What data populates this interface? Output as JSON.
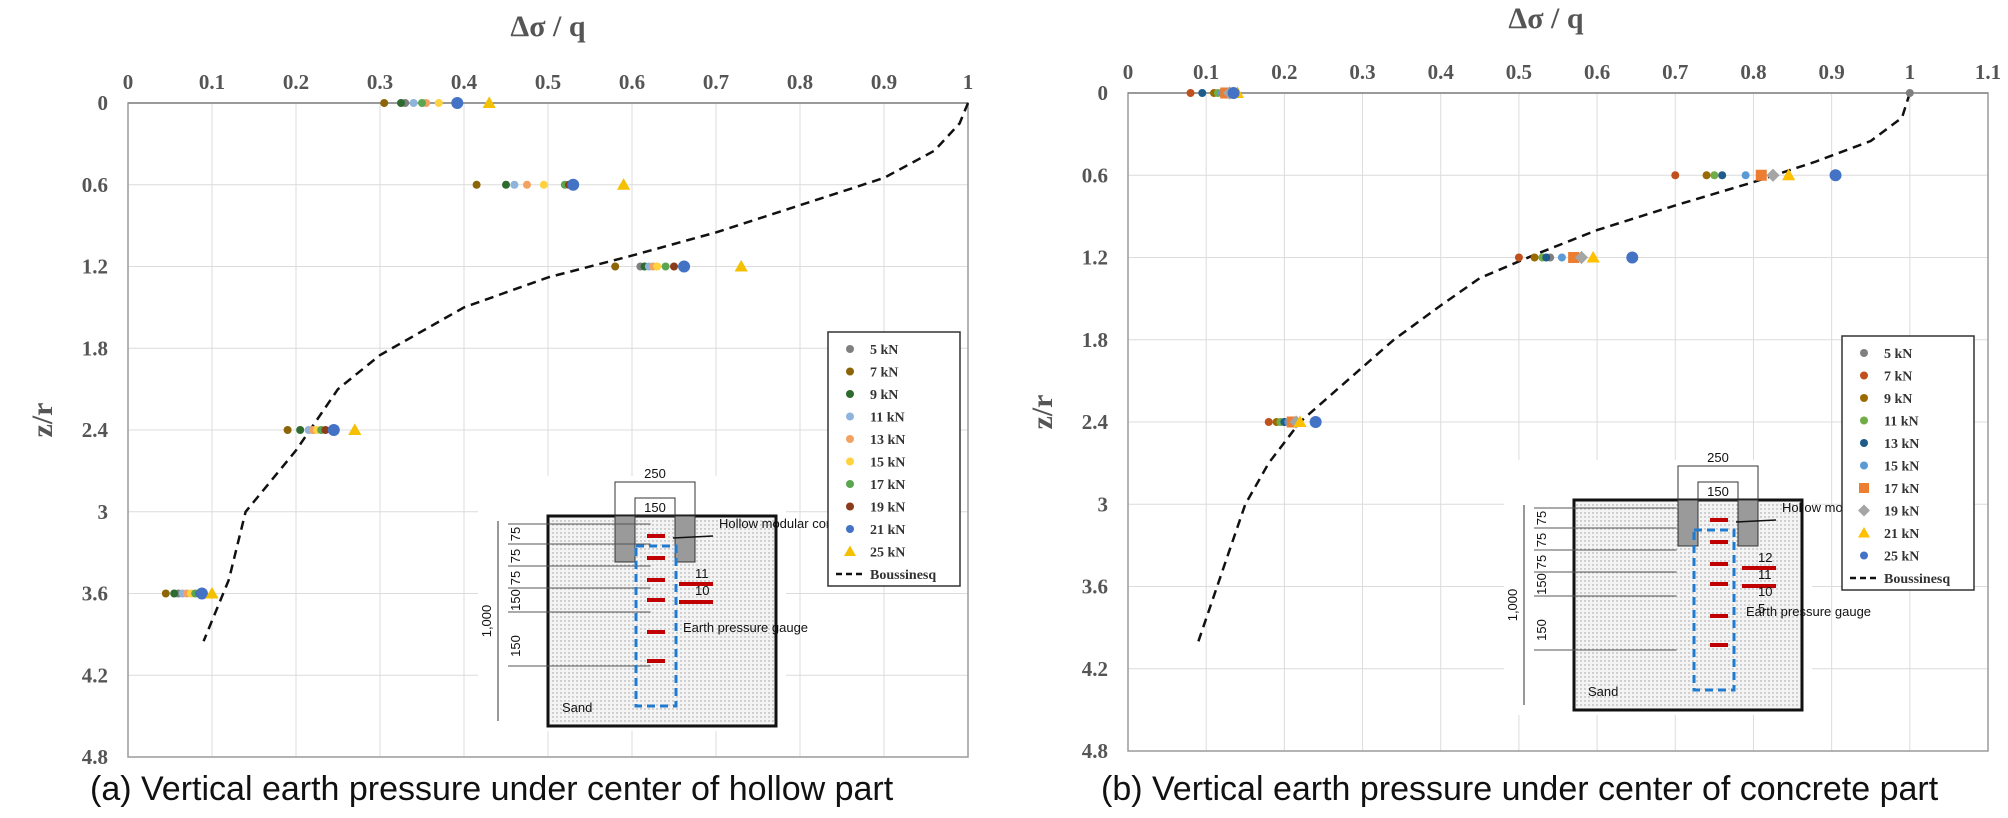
{
  "captions": {
    "a": "(a) Vertical earth pressure under center of hollow part",
    "b": "(b) Vertical earth pressure under center of concrete part"
  },
  "inset": {
    "dim_top": "250",
    "dim_inner": "150",
    "dim_side": "1,000",
    "layer_dims_a": [
      "75",
      "75",
      "75",
      "150",
      "150"
    ],
    "layer_dims_b": [
      "75",
      "75",
      "75",
      "150",
      "150"
    ],
    "hollow_label": "Hollow modular concrete block",
    "gauge_label": "Earth pressure gauge",
    "sand_label": "Sand",
    "gauge_numbers_a": [
      "11",
      "10"
    ],
    "gauge_numbers_b": [
      "12",
      "11",
      "10",
      "5"
    ]
  },
  "chart_data": [
    {
      "type": "scatter",
      "xlabel": "Δσ / q",
      "ylabel": "z/r",
      "xlim": [
        0,
        1
      ],
      "xticks": [
        "0",
        "0.1",
        "0.2",
        "0.3",
        "0.4",
        "0.5",
        "0.6",
        "0.7",
        "0.8",
        "0.9",
        "1"
      ],
      "ylim": [
        0,
        4.8
      ],
      "yticks": [
        "0",
        "0.6",
        "1.2",
        "1.8",
        "2.4",
        "3",
        "3.6",
        "4.2",
        "4.8"
      ],
      "y_inverted": true,
      "x_axis_position": "top",
      "grid": true,
      "legend_position": "lower-right",
      "series": [
        {
          "name": "5 kN",
          "color": "#7f7f7f",
          "marker": "circle",
          "points": [
            [
              0.33,
              0
            ],
            [
              0.61,
              1.2
            ],
            [
              0.22,
              2.4
            ],
            [
              0.06,
              3.6
            ]
          ]
        },
        {
          "name": "7 kN",
          "color": "#8b6508",
          "marker": "circle",
          "points": [
            [
              0.305,
              0
            ],
            [
              0.415,
              0.6
            ],
            [
              0.58,
              1.2
            ],
            [
              0.19,
              2.4
            ],
            [
              0.045,
              3.6
            ]
          ]
        },
        {
          "name": "9 kN",
          "color": "#2e6b2e",
          "marker": "circle",
          "points": [
            [
              0.325,
              0
            ],
            [
              0.45,
              0.6
            ],
            [
              0.615,
              1.2
            ],
            [
              0.205,
              2.4
            ],
            [
              0.055,
              3.6
            ]
          ]
        },
        {
          "name": "11 kN",
          "color": "#8fb4dc",
          "marker": "circle",
          "points": [
            [
              0.34,
              0
            ],
            [
              0.46,
              0.6
            ],
            [
              0.62,
              1.2
            ],
            [
              0.215,
              2.4
            ],
            [
              0.065,
              3.6
            ]
          ]
        },
        {
          "name": "13 kN",
          "color": "#f4a261",
          "marker": "circle",
          "points": [
            [
              0.355,
              0
            ],
            [
              0.475,
              0.6
            ],
            [
              0.625,
              1.2
            ],
            [
              0.22,
              2.4
            ],
            [
              0.07,
              3.6
            ]
          ]
        },
        {
          "name": "15 kN",
          "color": "#ffd23f",
          "marker": "circle",
          "points": [
            [
              0.37,
              0
            ],
            [
              0.495,
              0.6
            ],
            [
              0.63,
              1.2
            ],
            [
              0.225,
              2.4
            ],
            [
              0.075,
              3.6
            ]
          ]
        },
        {
          "name": "17 kN",
          "color": "#5aa64f",
          "marker": "circle",
          "points": [
            [
              0.35,
              0
            ],
            [
              0.52,
              0.6
            ],
            [
              0.64,
              1.2
            ],
            [
              0.23,
              2.4
            ],
            [
              0.08,
              3.6
            ]
          ]
        },
        {
          "name": "19 kN",
          "color": "#8b3a1a",
          "marker": "circle",
          "points": [
            [
              0.39,
              0
            ],
            [
              0.525,
              0.6
            ],
            [
              0.65,
              1.2
            ],
            [
              0.235,
              2.4
            ],
            [
              0.085,
              3.6
            ]
          ]
        },
        {
          "name": "21 kN",
          "color": "#4472c4",
          "marker": "circle",
          "points": [
            [
              0.392,
              0
            ],
            [
              0.53,
              0.6
            ],
            [
              0.662,
              1.2
            ],
            [
              0.245,
              2.4
            ],
            [
              0.088,
              3.6
            ]
          ]
        },
        {
          "name": "25 kN",
          "color": "#f5c000",
          "marker": "triangle",
          "points": [
            [
              0.43,
              0
            ],
            [
              0.59,
              0.6
            ],
            [
              0.73,
              1.2
            ],
            [
              0.27,
              2.4
            ],
            [
              0.1,
              3.6
            ]
          ]
        }
      ],
      "reference_line": {
        "name": "Boussinesq",
        "style": "dashed",
        "points": [
          [
            1.0,
            0
          ],
          [
            0.99,
            0.15
          ],
          [
            0.96,
            0.35
          ],
          [
            0.9,
            0.55
          ],
          [
            0.8,
            0.75
          ],
          [
            0.7,
            0.95
          ],
          [
            0.6,
            1.12
          ],
          [
            0.5,
            1.28
          ],
          [
            0.4,
            1.5
          ],
          [
            0.3,
            1.85
          ],
          [
            0.25,
            2.1
          ],
          [
            0.2,
            2.55
          ],
          [
            0.14,
            3.0
          ],
          [
            0.12,
            3.5
          ],
          [
            0.09,
            3.95
          ]
        ]
      }
    },
    {
      "type": "scatter",
      "xlabel": "Δσ / q",
      "ylabel": "z/r",
      "xlim": [
        0,
        1.1
      ],
      "xticks": [
        "0",
        "0.1",
        "0.2",
        "0.3",
        "0.4",
        "0.5",
        "0.6",
        "0.7",
        "0.8",
        "0.9",
        "1",
        "1.1"
      ],
      "ylim": [
        0,
        4.8
      ],
      "yticks": [
        "0",
        "0.6",
        "1.2",
        "1.8",
        "2.4",
        "3",
        "3.6",
        "4.2",
        "4.8"
      ],
      "y_inverted": true,
      "x_axis_position": "top",
      "grid": true,
      "legend_position": "lower-right",
      "series": [
        {
          "name": "5 kN",
          "color": "#7f7f7f",
          "marker": "circle",
          "points": [
            [
              1.0,
              0
            ],
            [
              0.54,
              1.2
            ],
            [
              0.2,
              2.4
            ]
          ]
        },
        {
          "name": "7 kN",
          "color": "#c0501c",
          "marker": "circle",
          "points": [
            [
              0.08,
              0
            ],
            [
              0.7,
              0.6
            ],
            [
              0.5,
              1.2
            ],
            [
              0.18,
              2.4
            ]
          ]
        },
        {
          "name": "9 kN",
          "color": "#9c6b00",
          "marker": "circle",
          "points": [
            [
              0.11,
              0
            ],
            [
              0.74,
              0.6
            ],
            [
              0.52,
              1.2
            ],
            [
              0.19,
              2.4
            ]
          ]
        },
        {
          "name": "11 kN",
          "color": "#70ad47",
          "marker": "circle",
          "points": [
            [
              0.115,
              0
            ],
            [
              0.75,
              0.6
            ],
            [
              0.53,
              1.2
            ],
            [
              0.195,
              2.4
            ]
          ]
        },
        {
          "name": "13 kN",
          "color": "#1f5c8a",
          "marker": "circle",
          "points": [
            [
              0.095,
              0
            ],
            [
              0.76,
              0.6
            ],
            [
              0.535,
              1.2
            ],
            [
              0.2,
              2.4
            ]
          ]
        },
        {
          "name": "15 kN",
          "color": "#5b9bd5",
          "marker": "circle",
          "points": [
            [
              0.12,
              0
            ],
            [
              0.79,
              0.6
            ],
            [
              0.555,
              1.2
            ],
            [
              0.205,
              2.4
            ]
          ]
        },
        {
          "name": "17 kN",
          "color": "#ed7d31",
          "marker": "square",
          "points": [
            [
              0.125,
              0
            ],
            [
              0.81,
              0.6
            ],
            [
              0.57,
              1.2
            ],
            [
              0.21,
              2.4
            ]
          ]
        },
        {
          "name": "19 kN",
          "color": "#a5a5a5",
          "marker": "diamond",
          "points": [
            [
              0.13,
              0
            ],
            [
              0.825,
              0.6
            ],
            [
              0.58,
              1.2
            ],
            [
              0.215,
              2.4
            ]
          ]
        },
        {
          "name": "21 kN",
          "color": "#ffc000",
          "marker": "triangle",
          "points": [
            [
              0.14,
              0
            ],
            [
              0.845,
              0.6
            ],
            [
              0.595,
              1.2
            ],
            [
              0.22,
              2.4
            ]
          ]
        },
        {
          "name": "25 kN",
          "color": "#4472c4",
          "marker": "circle",
          "points": [
            [
              0.135,
              0
            ],
            [
              0.905,
              0.6
            ],
            [
              0.645,
              1.2
            ],
            [
              0.24,
              2.4
            ]
          ]
        }
      ],
      "reference_line": {
        "name": "Boussinesq",
        "style": "dashed",
        "points": [
          [
            1.0,
            0
          ],
          [
            0.99,
            0.18
          ],
          [
            0.95,
            0.35
          ],
          [
            0.88,
            0.5
          ],
          [
            0.8,
            0.65
          ],
          [
            0.7,
            0.82
          ],
          [
            0.6,
            1.0
          ],
          [
            0.52,
            1.18
          ],
          [
            0.45,
            1.35
          ],
          [
            0.4,
            1.55
          ],
          [
            0.34,
            1.8
          ],
          [
            0.3,
            2.0
          ],
          [
            0.22,
            2.4
          ],
          [
            0.18,
            2.7
          ],
          [
            0.15,
            3.0
          ],
          [
            0.12,
            3.5
          ],
          [
            0.09,
            4.0
          ]
        ]
      }
    }
  ]
}
